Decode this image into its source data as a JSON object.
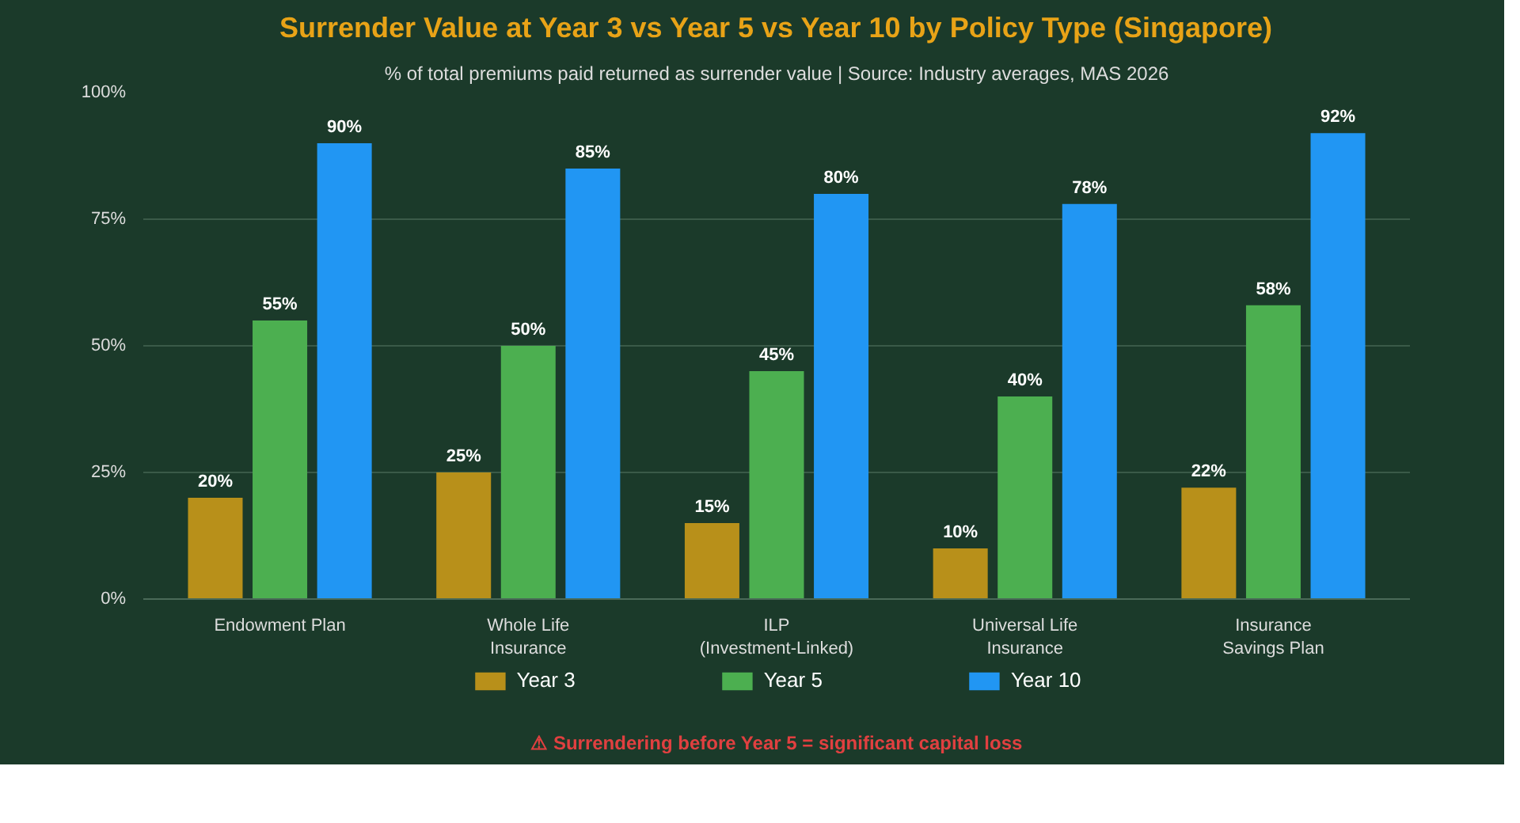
{
  "chart_data": {
    "type": "bar",
    "title": "Surrender Value at Year 3 vs Year 5 vs Year 10 by Policy Type (Singapore)",
    "subtitle": "% of total premiums paid returned as surrender value | Source: Industry averages, MAS 2026",
    "categories": [
      "Endowment Plan",
      "Whole Life\nInsurance",
      "ILP\n(Investment-Linked)",
      "Universal Life\nInsurance",
      "Insurance\nSavings Plan"
    ],
    "series": [
      {
        "name": "Year 3",
        "color": "#b8901a",
        "values": [
          20,
          25,
          15,
          10,
          22
        ],
        "value_labels": [
          "20%",
          "25%",
          "15%",
          "10%",
          "22%"
        ]
      },
      {
        "name": "Year 5",
        "color": "#4caf50",
        "values": [
          55,
          50,
          45,
          40,
          58
        ],
        "value_labels": [
          "55%",
          "50%",
          "45%",
          "40%",
          "58%"
        ]
      },
      {
        "name": "Year 10",
        "color": "#2196f3",
        "values": [
          90,
          85,
          80,
          78,
          92
        ],
        "value_labels": [
          "90%",
          "85%",
          "80%",
          "78%",
          "92%"
        ]
      }
    ],
    "ylim": [
      0,
      100
    ],
    "yticks": [
      {
        "value": 0,
        "label": "0%"
      },
      {
        "value": 25,
        "label": "25%"
      },
      {
        "value": 50,
        "label": "50%"
      },
      {
        "value": 75,
        "label": "75%"
      },
      {
        "value": 100,
        "label": "100%"
      }
    ],
    "grid": "y",
    "legend": "bottom",
    "annotations": [
      "⚠ Surrendering before Year 5 = significant capital loss"
    ]
  }
}
